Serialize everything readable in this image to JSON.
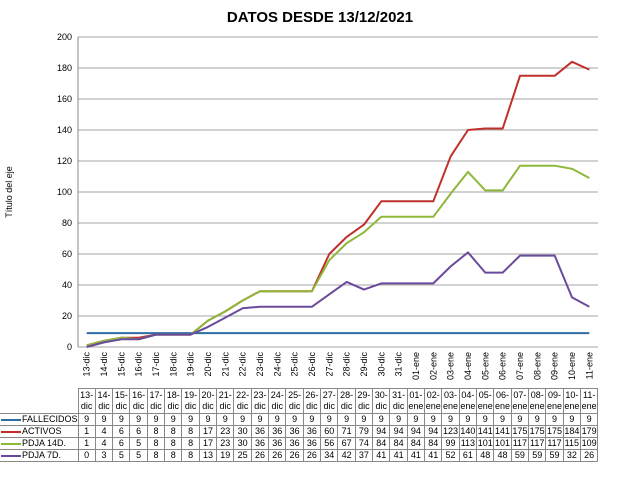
{
  "chart_data": {
    "type": "line",
    "title": "DATOS DESDE 13/12/2021",
    "y_label": "Título del eje",
    "categories": [
      "13-dic",
      "14-dic",
      "15-dic",
      "16-dic",
      "17-dic",
      "18-dic",
      "19-dic",
      "20-dic",
      "21-dic",
      "22-dic",
      "23-dic",
      "24-dic",
      "25-dic",
      "26-dic",
      "27-dic",
      "28-dic",
      "29-dic",
      "30-dic",
      "31-dic",
      "01-ene",
      "02-ene",
      "03-ene",
      "04-ene",
      "05-ene",
      "06-ene",
      "07-ene",
      "08-ene",
      "09-ene",
      "10-ene",
      "11-ene"
    ],
    "series": [
      {
        "name": "FALLECIDOS",
        "color": "#2e6da4",
        "values": [
          9,
          9,
          9,
          9,
          9,
          9,
          9,
          9,
          9,
          9,
          9,
          9,
          9,
          9,
          9,
          9,
          9,
          9,
          9,
          9,
          9,
          9,
          9,
          9,
          9,
          9,
          9,
          9,
          9,
          9
        ]
      },
      {
        "name": "ACTIVOS",
        "color": "#c0302b",
        "values": [
          1,
          4,
          6,
          6,
          8,
          8,
          8,
          17,
          23,
          30,
          36,
          36,
          36,
          36,
          60,
          71,
          79,
          94,
          94,
          94,
          94,
          123,
          140,
          141,
          141,
          175,
          175,
          175,
          184,
          179
        ]
      },
      {
        "name": "PDJA 14D.",
        "color": "#8db83a",
        "values": [
          1,
          4,
          6,
          5,
          8,
          8,
          8,
          17,
          23,
          30,
          36,
          36,
          36,
          36,
          56,
          67,
          74,
          84,
          84,
          84,
          84,
          99,
          113,
          101,
          101,
          117,
          117,
          117,
          115,
          109
        ]
      },
      {
        "name": "PDJA 7D.",
        "color": "#6a4a9c",
        "values": [
          0,
          3,
          5,
          5,
          8,
          8,
          8,
          13,
          19,
          25,
          26,
          26,
          26,
          26,
          34,
          42,
          37,
          41,
          41,
          41,
          41,
          52,
          61,
          48,
          48,
          59,
          59,
          59,
          32,
          26
        ]
      }
    ],
    "ylim": [
      0,
      200
    ],
    "yticks": [
      0,
      20,
      40,
      60,
      80,
      100,
      120,
      140,
      160,
      180,
      200
    ],
    "grid": true
  }
}
